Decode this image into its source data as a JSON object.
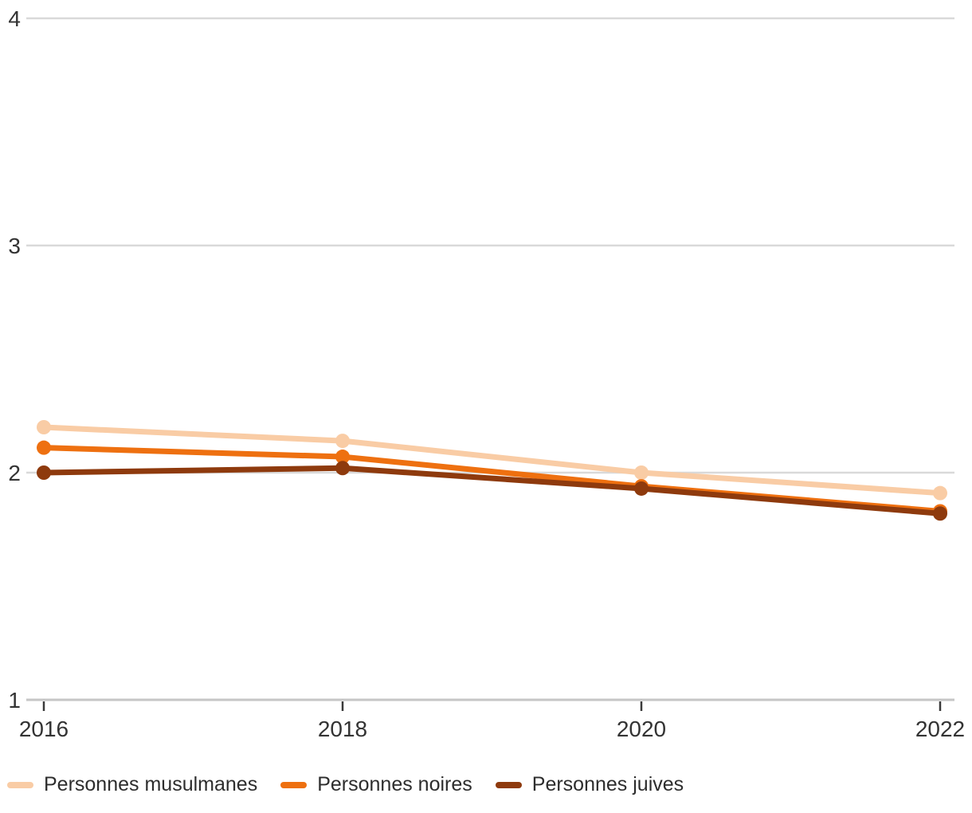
{
  "chart_data": {
    "type": "line",
    "x": [
      "2016",
      "2018",
      "2020",
      "2022"
    ],
    "series": [
      {
        "name": "Personnes musulmanes",
        "color": "#F9CCA5",
        "values": [
          2.2,
          2.14,
          2.0,
          1.91
        ]
      },
      {
        "name": "Personnes noires",
        "color": "#EE7010",
        "values": [
          2.11,
          2.07,
          1.94,
          1.83
        ]
      },
      {
        "name": "Personnes juives",
        "color": "#8E3A0D",
        "values": [
          2.0,
          2.02,
          1.93,
          1.82
        ]
      }
    ],
    "y_ticks": [
      1,
      2,
      3,
      4
    ],
    "ylim": [
      1,
      4
    ],
    "grid": true,
    "legend_position": "bottom",
    "marker": "circle",
    "line_width": 7
  },
  "colors": {
    "grid": "#d9d9d9",
    "axis": "#c6c6c6",
    "tick": "#3a3a3a",
    "label": "#333333"
  }
}
